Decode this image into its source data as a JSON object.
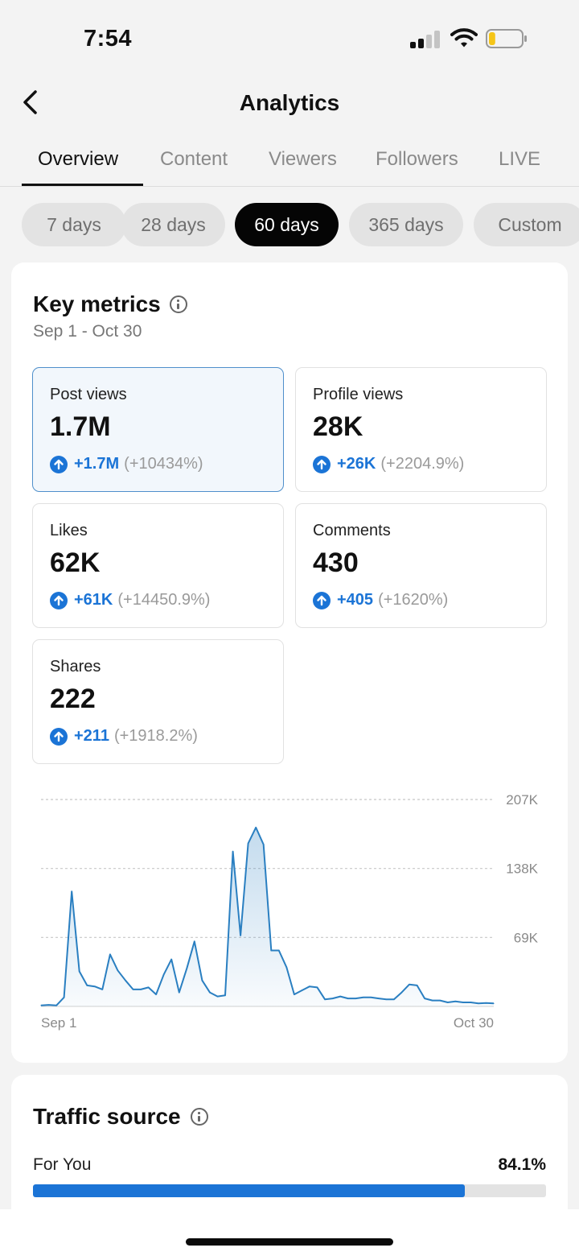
{
  "status_bar": {
    "time": "7:54",
    "battery_level": 0.2,
    "battery_color": "#f5c518"
  },
  "nav": {
    "title": "Analytics",
    "back_icon": "chevron-left-icon"
  },
  "tabs": [
    {
      "label": "Overview",
      "active": true
    },
    {
      "label": "Content",
      "active": false
    },
    {
      "label": "Viewers",
      "active": false
    },
    {
      "label": "Followers",
      "active": false
    },
    {
      "label": "LIVE",
      "active": false
    }
  ],
  "ranges": [
    {
      "label": "7 days",
      "active": false
    },
    {
      "label": "28 days",
      "active": false
    },
    {
      "label": "60 days",
      "active": true
    },
    {
      "label": "365 days",
      "active": false
    },
    {
      "label": "Custom",
      "active": false
    }
  ],
  "key_metrics": {
    "title": "Key metrics",
    "info_icon": "info-icon",
    "date_range": "Sep 1 - Oct 30",
    "items": [
      {
        "label": "Post views",
        "value": "1.7M",
        "delta": "+1.7M",
        "pct": "(+10434%)",
        "selected": true
      },
      {
        "label": "Profile views",
        "value": "28K",
        "delta": "+26K",
        "pct": "(+2204.9%)",
        "selected": false
      },
      {
        "label": "Likes",
        "value": "62K",
        "delta": "+61K",
        "pct": "(+14450.9%)",
        "selected": false
      },
      {
        "label": "Comments",
        "value": "430",
        "delta": "+405",
        "pct": "(+1620%)",
        "selected": false
      },
      {
        "label": "Shares",
        "value": "222",
        "delta": "+211",
        "pct": "(+1918.2%)",
        "selected": false
      }
    ]
  },
  "chart_data": {
    "type": "area",
    "title": "",
    "xlabel": "",
    "ylabel": "",
    "x_tick_labels": [
      "Sep 1",
      "Oct 30"
    ],
    "y_tick_labels": [
      "207K",
      "138K",
      "69K"
    ],
    "y_ticks": [
      207000,
      138000,
      69000
    ],
    "ylim": [
      0,
      207000
    ],
    "grid": true,
    "color": "#2a7fc1",
    "series": [
      {
        "values": [
          1000,
          1500,
          1000,
          9000,
          115000,
          35000,
          21000,
          20000,
          17000,
          52000,
          36000,
          26000,
          17000,
          17000,
          19000,
          12000,
          32000,
          47000,
          14000,
          38000,
          65000,
          26000,
          14000,
          10000,
          11000,
          155000,
          71000,
          163000,
          179000,
          162000,
          56000,
          56000,
          39000,
          12000,
          16000,
          20000,
          19000,
          7000,
          8000,
          10000,
          8000,
          8000,
          9000,
          9000,
          8000,
          7000,
          7000,
          14000,
          22000,
          21000,
          8000,
          6000,
          6000,
          4000,
          5000,
          4000,
          4000,
          3000,
          3500,
          3000
        ]
      }
    ]
  },
  "traffic_source": {
    "title": "Traffic source",
    "info_icon": "info-icon",
    "items": [
      {
        "label": "For You",
        "pct": "84.1%",
        "value": 0.841
      }
    ]
  }
}
